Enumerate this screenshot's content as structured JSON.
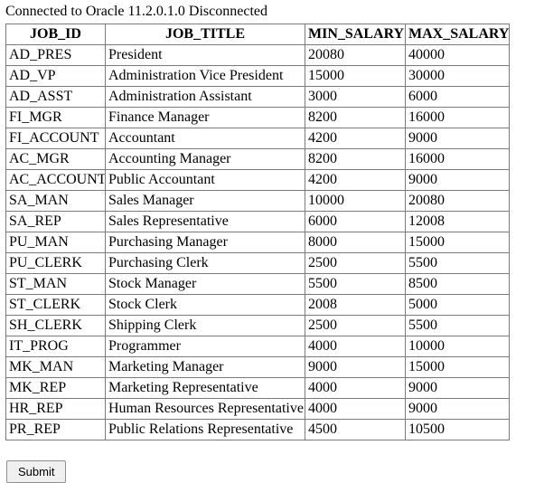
{
  "status_line": "Connected to Oracle 11.2.0.1.0 Disconnected",
  "table": {
    "columns": [
      "JOB_ID",
      "JOB_TITLE",
      "MIN_SALARY",
      "MAX_SALARY"
    ],
    "rows": [
      [
        "AD_PRES",
        "President",
        "20080",
        "40000"
      ],
      [
        "AD_VP",
        "Administration Vice President",
        "15000",
        "30000"
      ],
      [
        "AD_ASST",
        "Administration Assistant",
        "3000",
        "6000"
      ],
      [
        "FI_MGR",
        "Finance Manager",
        "8200",
        "16000"
      ],
      [
        "FI_ACCOUNT",
        "Accountant",
        "4200",
        "9000"
      ],
      [
        "AC_MGR",
        "Accounting Manager",
        "8200",
        "16000"
      ],
      [
        "AC_ACCOUNT",
        "Public Accountant",
        "4200",
        "9000"
      ],
      [
        "SA_MAN",
        "Sales Manager",
        "10000",
        "20080"
      ],
      [
        "SA_REP",
        "Sales Representative",
        "6000",
        "12008"
      ],
      [
        "PU_MAN",
        "Purchasing Manager",
        "8000",
        "15000"
      ],
      [
        "PU_CLERK",
        "Purchasing Clerk",
        "2500",
        "5500"
      ],
      [
        "ST_MAN",
        "Stock Manager",
        "5500",
        "8500"
      ],
      [
        "ST_CLERK",
        "Stock Clerk",
        "2008",
        "5000"
      ],
      [
        "SH_CLERK",
        "Shipping Clerk",
        "2500",
        "5500"
      ],
      [
        "IT_PROG",
        "Programmer",
        "4000",
        "10000"
      ],
      [
        "MK_MAN",
        "Marketing Manager",
        "9000",
        "15000"
      ],
      [
        "MK_REP",
        "Marketing Representative",
        "4000",
        "9000"
      ],
      [
        "HR_REP",
        "Human Resources Representative",
        "4000",
        "9000"
      ],
      [
        "PR_REP",
        "Public Relations Representative",
        "4500",
        "10500"
      ]
    ]
  },
  "submit": {
    "label": "Submit"
  },
  "colors": {
    "text": "#000000",
    "table_border": "#7b7b7b",
    "button_background": "#f0f0f0",
    "button_border": "#8f8f8f",
    "page_background": "#ffffff"
  }
}
